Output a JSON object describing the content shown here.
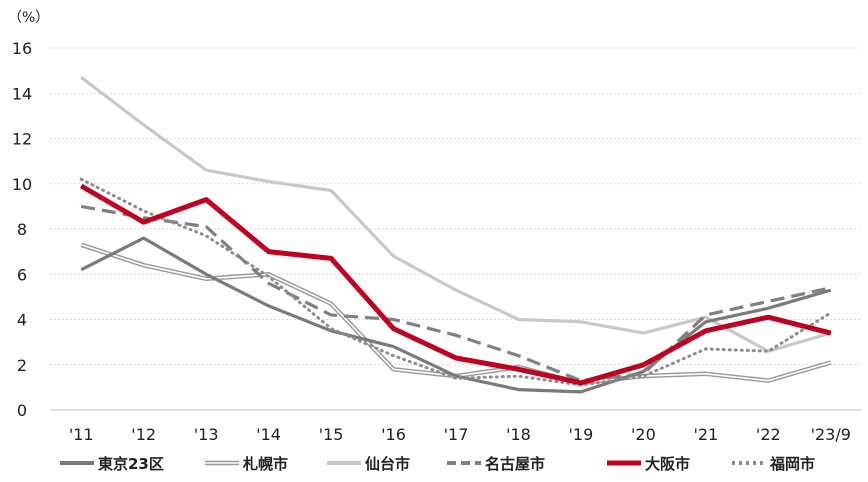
{
  "chart_data": {
    "type": "line",
    "title": "",
    "xlabel": "",
    "ylabel": "",
    "unit_label": "（%）",
    "ylim": [
      0,
      16
    ],
    "yticks": [
      "0",
      "2",
      "4",
      "6",
      "8",
      "10",
      "12",
      "14",
      "16"
    ],
    "categories": [
      "'11",
      "'12",
      "'13",
      "'14",
      "'15",
      "'16",
      "'17",
      "'18",
      "'19",
      "'20",
      "'21",
      "'22",
      "'23/9"
    ],
    "grid": true,
    "legend_position": "bottom",
    "series": [
      {
        "name": "東京23区",
        "style": "solid-thick",
        "color": "#7a7a7a",
        "values": [
          6.2,
          7.6,
          6.0,
          4.6,
          3.5,
          2.8,
          1.5,
          0.9,
          0.8,
          1.7,
          3.9,
          4.5,
          5.3
        ]
      },
      {
        "name": "札幌市",
        "style": "double",
        "color": "#9a9a9a",
        "values": [
          7.3,
          6.4,
          5.8,
          6.0,
          4.7,
          1.8,
          1.5,
          1.9,
          1.2,
          1.5,
          1.6,
          1.3,
          2.1
        ]
      },
      {
        "name": "仙台市",
        "style": "solid-light",
        "color": "#c8c8c8",
        "values": [
          14.7,
          12.6,
          10.6,
          10.1,
          9.7,
          6.8,
          5.3,
          4.0,
          3.9,
          3.4,
          4.1,
          2.6,
          3.4
        ]
      },
      {
        "name": "名古屋市",
        "style": "dashed",
        "color": "#808080",
        "values": [
          9.0,
          8.5,
          8.1,
          5.6,
          4.2,
          4.0,
          3.3,
          2.4,
          1.3,
          1.6,
          4.2,
          4.8,
          5.4
        ]
      },
      {
        "name": "大阪市",
        "style": "solid-bold-red",
        "color": "#c00020",
        "values": [
          9.9,
          8.3,
          9.3,
          7.0,
          6.7,
          3.6,
          2.3,
          1.8,
          1.2,
          2.0,
          3.5,
          4.1,
          3.4
        ]
      },
      {
        "name": "福岡市",
        "style": "dotted",
        "color": "#8c8c8c",
        "values": [
          10.2,
          8.8,
          7.7,
          5.9,
          3.6,
          2.4,
          1.4,
          1.5,
          1.1,
          1.5,
          2.7,
          2.6,
          4.3
        ]
      }
    ]
  }
}
